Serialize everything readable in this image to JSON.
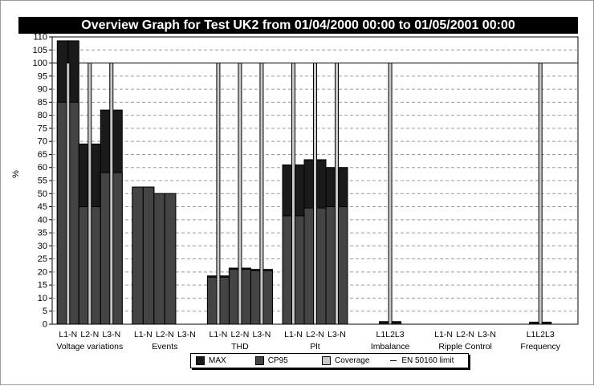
{
  "chart_data": {
    "type": "bar",
    "title": "Overview Graph for Test UK2 from 01/04/2000 00:00 to 01/05/2001 00:00",
    "ylabel": "%",
    "ylim": [
      0,
      110
    ],
    "ytick_step": 5,
    "grid": true,
    "legend_position": "bottom-center",
    "limit_line": {
      "name": "EN 50160 limit",
      "value": 100
    },
    "colors": {
      "MAX": "#1a1a1a",
      "CP95": "#444444",
      "Coverage": "#c8c8c8",
      "outline": "#000000"
    },
    "groups": [
      {
        "name": "Voltage variations",
        "categories": [
          "L1-N",
          "L2-N",
          "L3-N"
        ],
        "max": [
          108.5,
          69,
          82
        ],
        "cp95": [
          85,
          45,
          58
        ],
        "coverage": [
          100,
          100,
          100
        ]
      },
      {
        "name": "Events",
        "categories": [
          "L1-N",
          "L2-N",
          "L3-N"
        ],
        "max": [
          52.5,
          50,
          0
        ],
        "cp95": [
          52.5,
          50,
          0
        ],
        "coverage": [
          0,
          0,
          0
        ]
      },
      {
        "name": "THD",
        "categories": [
          "L1-N",
          "L2-N",
          "L3-N"
        ],
        "max": [
          18.5,
          21.5,
          21
        ],
        "cp95": [
          18,
          21,
          20.5
        ],
        "coverage": [
          100,
          100,
          100
        ]
      },
      {
        "name": "Plt",
        "categories": [
          "L1-N",
          "L2-N",
          "L3-N"
        ],
        "max": [
          61,
          63,
          60
        ],
        "cp95": [
          41.5,
          44.5,
          45
        ],
        "coverage": [
          100,
          100,
          100
        ]
      },
      {
        "name": "Imbalance",
        "categories": [
          "L1L2L3"
        ],
        "max": [
          1
        ],
        "cp95": [
          0.5
        ],
        "coverage": [
          100
        ]
      },
      {
        "name": "Ripple Control",
        "categories": [
          "L1-N",
          "L2-N",
          "L3-N"
        ],
        "max": [
          0,
          0,
          0
        ],
        "cp95": [
          0,
          0,
          0
        ],
        "coverage": [
          0,
          0,
          0
        ]
      },
      {
        "name": "Frequency",
        "categories": [
          "L1L2L3"
        ],
        "max": [
          0.8
        ],
        "cp95": [
          0.4
        ],
        "coverage": [
          100
        ]
      }
    ],
    "legend": [
      "MAX",
      "CP95",
      "Coverage",
      "EN 50160 limit"
    ]
  }
}
